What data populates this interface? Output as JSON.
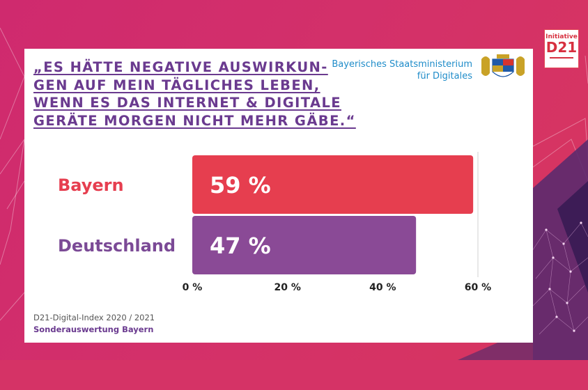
{
  "headline": {
    "lines": [
      "„ES HÄTTE NEGATIVE AUSWIRKUN-",
      "GEN AUF MEIN TÄGLICHES LEBEN,",
      "WENN ES DAS INTERNET & DIGITALE",
      "GERÄTE MORGEN NICHT MEHR GÄBE.“"
    ]
  },
  "ministry": {
    "line1": "Bayerisches Staatsministerium",
    "line2": "für Digitales"
  },
  "logo": {
    "small": "Initiative",
    "big": "D21"
  },
  "footer": {
    "source": "D21-Digital-Index 2020 / 2021",
    "subtitle": "Sonderauswertung Bayern"
  },
  "chart_data": {
    "type": "bar",
    "orientation": "horizontal",
    "categories": [
      "Bayern",
      "Deutschland"
    ],
    "values": [
      59,
      47
    ],
    "value_labels": [
      "59 %",
      "47 %"
    ],
    "colors": [
      "#e63e4f",
      "#8a4a96"
    ],
    "label_colors": [
      "#e63e4f",
      "#7b4a96"
    ],
    "xlim": [
      0,
      60
    ],
    "xticks": [
      0,
      20,
      40,
      60
    ],
    "xtick_labels": [
      "0 %",
      "20 %",
      "40 %",
      "60 %"
    ],
    "grid": false,
    "legend": "none"
  }
}
